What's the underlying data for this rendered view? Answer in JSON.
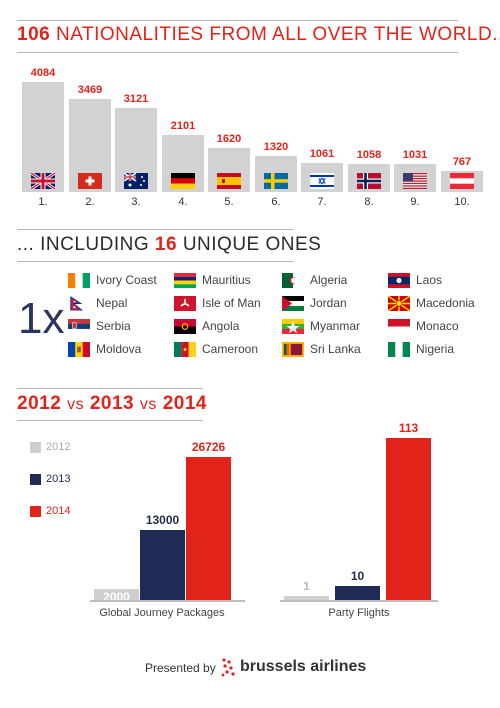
{
  "section1": {
    "headline_num": "106",
    "headline_text": "NATIONALITIES FROM ALL OVER THE WORLD..."
  },
  "section2": {
    "headline_pre": "... INCLUDING",
    "headline_num": "16",
    "headline_post": "UNIQUE ONES",
    "multiplier": "1x",
    "countries": [
      {
        "name": "Ivory Coast",
        "flag": "ivory-coast-flag"
      },
      {
        "name": "Nepal",
        "flag": "nepal-flag"
      },
      {
        "name": "Serbia",
        "flag": "serbia-flag"
      },
      {
        "name": "Moldova",
        "flag": "moldova-flag"
      },
      {
        "name": "Mauritius",
        "flag": "mauritius-flag"
      },
      {
        "name": "Isle of Man",
        "flag": "isle-of-man-flag"
      },
      {
        "name": "Angola",
        "flag": "angola-flag"
      },
      {
        "name": "Cameroon",
        "flag": "cameroon-flag"
      },
      {
        "name": "Algeria",
        "flag": "algeria-flag"
      },
      {
        "name": "Jordan",
        "flag": "jordan-flag"
      },
      {
        "name": "Myanmar",
        "flag": "myanmar-flag"
      },
      {
        "name": "Sri Lanka",
        "flag": "sri-lanka-flag"
      },
      {
        "name": "Laos",
        "flag": "laos-flag"
      },
      {
        "name": "Macedonia",
        "flag": "macedonia-flag"
      },
      {
        "name": "Monaco",
        "flag": "monaco-flag"
      },
      {
        "name": "Nigeria",
        "flag": "nigeria-flag"
      }
    ]
  },
  "section3": {
    "title_parts": [
      "2012",
      "vs",
      "2013",
      "vs",
      "2014"
    ]
  },
  "footer": {
    "presented_by": "Presented by",
    "brand": "brussels airlines"
  },
  "colors": {
    "accent_red": "#e2231a",
    "navy": "#1f2a55",
    "grey": "#cfcfcf"
  },
  "chart_data": [
    {
      "type": "bar",
      "categories": [
        "1.",
        "2.",
        "3.",
        "4.",
        "5.",
        "6.",
        "7.",
        "8.",
        "9.",
        "10."
      ],
      "values": [
        4084,
        3469,
        3121,
        2101,
        1620,
        1320,
        1061,
        1058,
        1031,
        767
      ],
      "value_labels": [
        "4084",
        "3469",
        "3121",
        "2101",
        "1620",
        "1320",
        "1061",
        "1058",
        "1031",
        "767"
      ],
      "category_flags": [
        "united-kingdom-flag",
        "switzerland-flag",
        "australia-flag",
        "germany-flag",
        "spain-flag",
        "sweden-flag",
        "israel-flag",
        "norway-flag",
        "usa-flag",
        "austria-flag"
      ],
      "title": "",
      "xlabel": "",
      "ylabel": ""
    },
    {
      "type": "bar",
      "group_label": "Global Journey Packages",
      "categories": [
        "2012",
        "2013",
        "2014"
      ],
      "values": [
        2000,
        13000,
        26726
      ],
      "value_labels": [
        "2000",
        "13000",
        "26726"
      ]
    },
    {
      "type": "bar",
      "group_label": "Party Flights",
      "categories": [
        "2012",
        "2013",
        "2014"
      ],
      "values": [
        1,
        10,
        113
      ],
      "value_labels": [
        "1",
        "10",
        "113"
      ]
    }
  ],
  "legend": [
    {
      "name": "2012",
      "color": "#cfcfcf"
    },
    {
      "name": "2013",
      "color": "#1f2a55"
    },
    {
      "name": "2014",
      "color": "#e2231a"
    }
  ]
}
